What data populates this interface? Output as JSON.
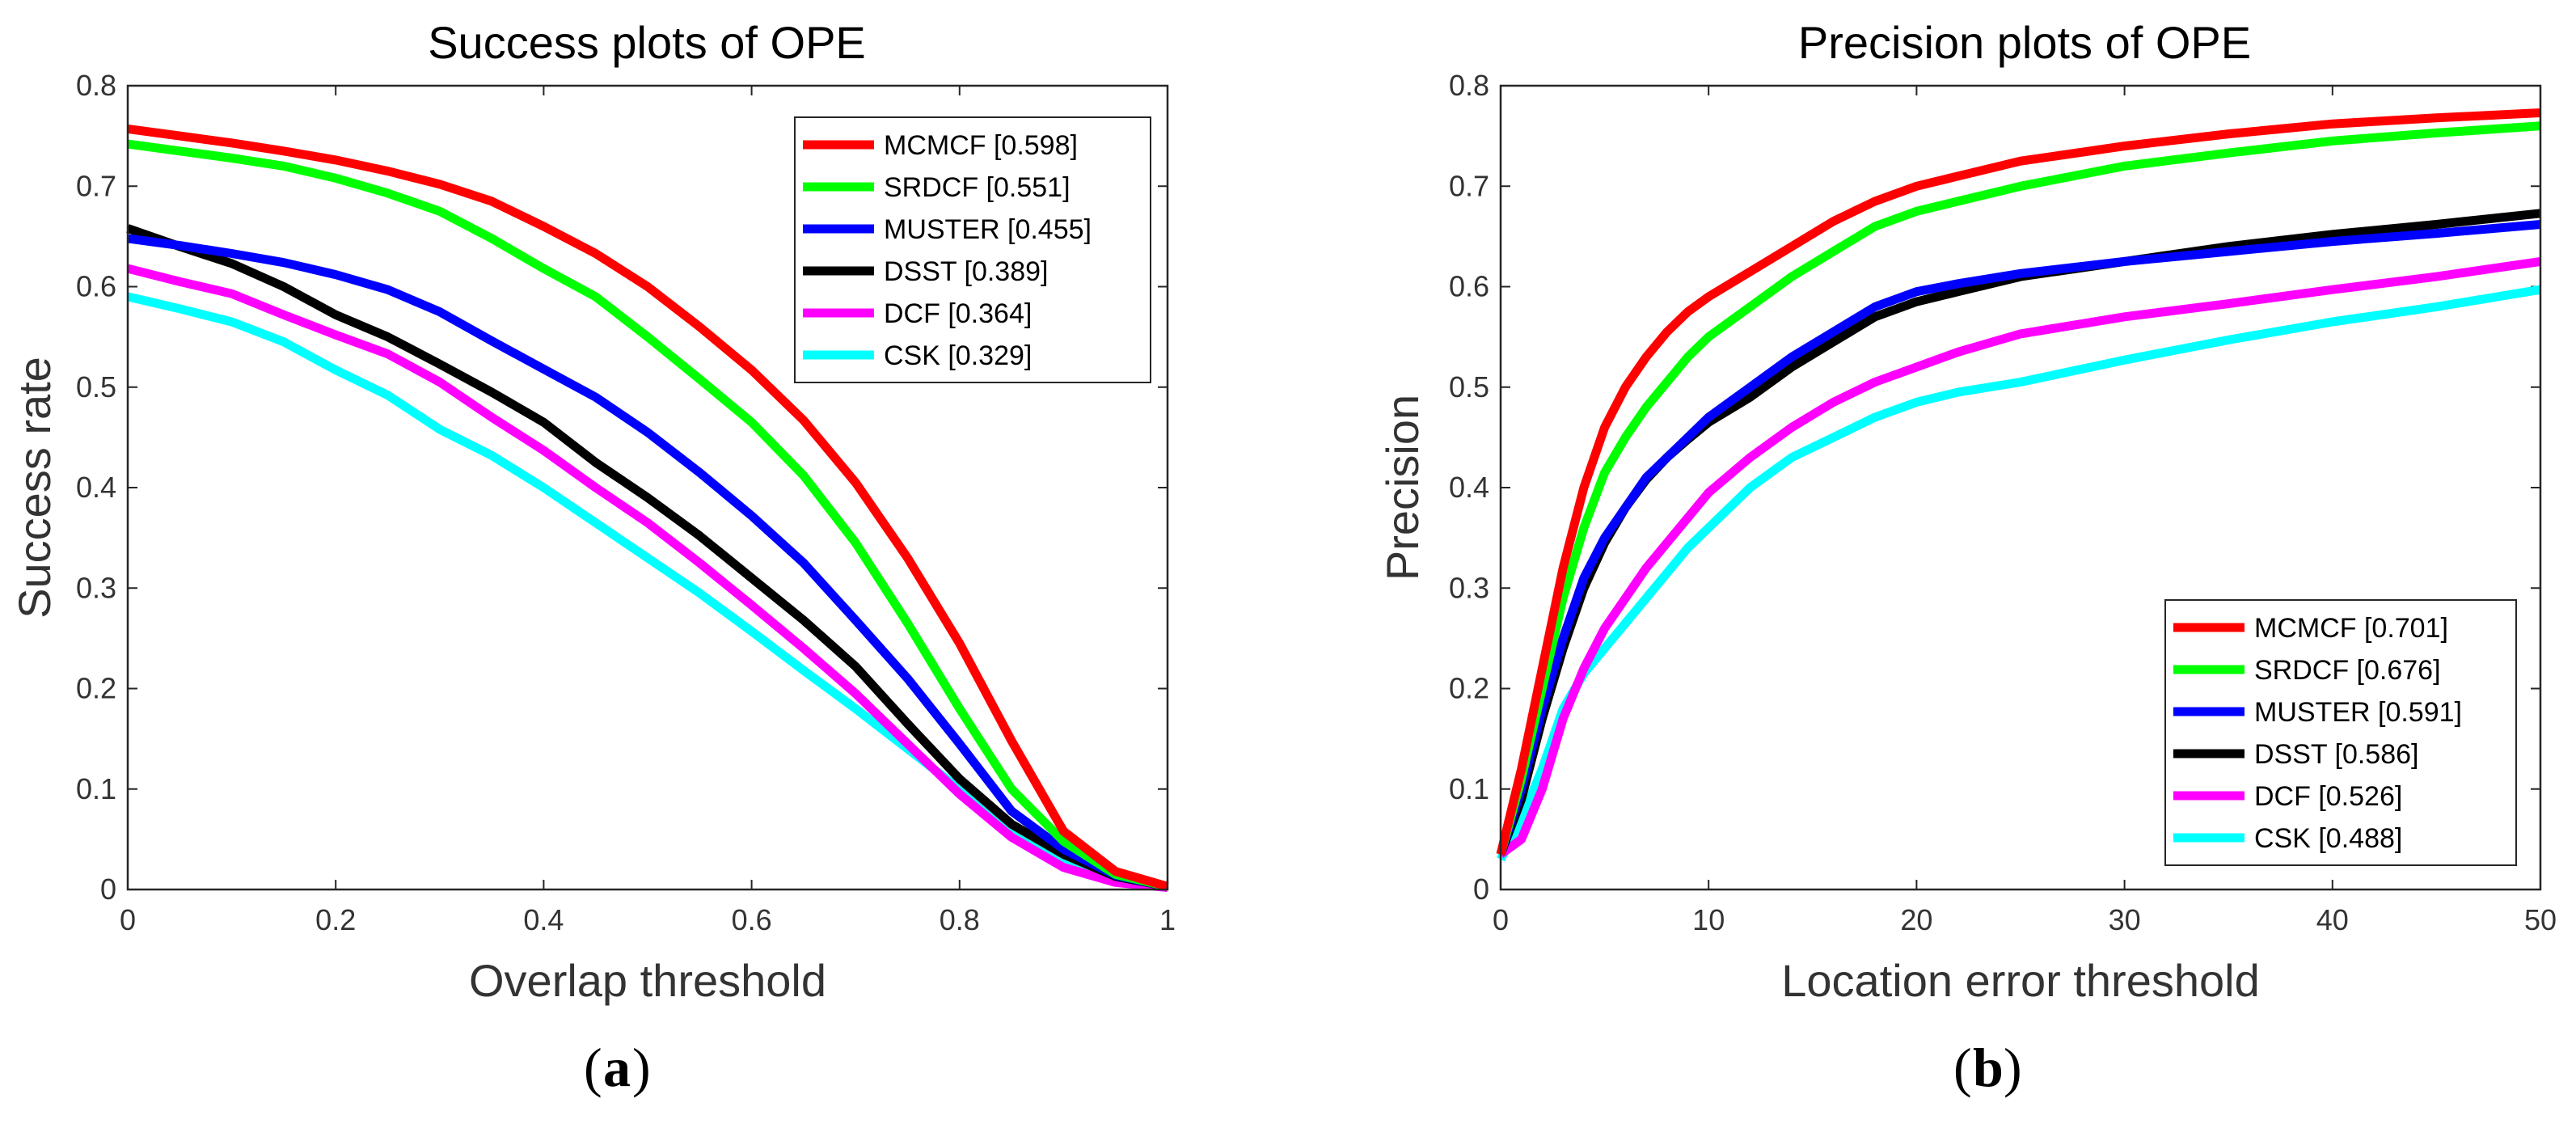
{
  "chart_data": [
    {
      "type": "line",
      "title": "Success plots of OPE",
      "xlabel": "Overlap threshold",
      "ylabel": "Success rate",
      "caption_letter": "a",
      "xlim": [
        0,
        1
      ],
      "ylim": [
        0,
        0.8
      ],
      "xticks": [
        "0",
        "0.2",
        "0.4",
        "0.6",
        "0.8",
        "1"
      ],
      "xtick_values": [
        0,
        0.2,
        0.4,
        0.6,
        0.8,
        1
      ],
      "yticks": [
        "0",
        "0.1",
        "0.2",
        "0.3",
        "0.4",
        "0.5",
        "0.6",
        "0.7",
        "0.8"
      ],
      "ytick_values": [
        0,
        0.1,
        0.2,
        0.3,
        0.4,
        0.5,
        0.6,
        0.7,
        0.8
      ],
      "legend_position": "top-right",
      "x": [
        0,
        0.05,
        0.1,
        0.15,
        0.2,
        0.25,
        0.3,
        0.35,
        0.4,
        0.45,
        0.5,
        0.55,
        0.6,
        0.65,
        0.7,
        0.75,
        0.8,
        0.85,
        0.9,
        0.95,
        1
      ],
      "series": [
        {
          "name": "MCMCF [0.598]",
          "color": "#ff0000",
          "values": [
            0.757,
            0.75,
            0.743,
            0.735,
            0.726,
            0.715,
            0.702,
            0.685,
            0.66,
            0.633,
            0.6,
            0.56,
            0.517,
            0.467,
            0.405,
            0.33,
            0.245,
            0.148,
            0.058,
            0.018,
            0.003
          ]
        },
        {
          "name": "SRDCF [0.551]",
          "color": "#00ff00",
          "values": [
            0.742,
            0.735,
            0.728,
            0.72,
            0.708,
            0.693,
            0.675,
            0.648,
            0.618,
            0.59,
            0.55,
            0.508,
            0.465,
            0.412,
            0.345,
            0.265,
            0.18,
            0.1,
            0.048,
            0.015,
            0.003
          ]
        },
        {
          "name": "MUSTER [0.455]",
          "color": "#0000ff",
          "values": [
            0.648,
            0.641,
            0.633,
            0.624,
            0.612,
            0.597,
            0.575,
            0.546,
            0.518,
            0.49,
            0.455,
            0.415,
            0.372,
            0.325,
            0.268,
            0.21,
            0.145,
            0.078,
            0.04,
            0.014,
            0.003
          ]
        },
        {
          "name": "DSST [0.389]",
          "color": "#000000",
          "values": [
            0.658,
            0.64,
            0.623,
            0.6,
            0.572,
            0.55,
            0.523,
            0.495,
            0.465,
            0.425,
            0.39,
            0.352,
            0.31,
            0.268,
            0.222,
            0.165,
            0.11,
            0.065,
            0.035,
            0.013,
            0.003
          ]
        },
        {
          "name": "DCF [0.364]",
          "color": "#ff00ff",
          "values": [
            0.618,
            0.605,
            0.593,
            0.572,
            0.552,
            0.533,
            0.505,
            0.47,
            0.437,
            0.4,
            0.365,
            0.325,
            0.283,
            0.24,
            0.195,
            0.145,
            0.095,
            0.052,
            0.022,
            0.007,
            0.002
          ]
        },
        {
          "name": "CSK [0.329]",
          "color": "#00ffff",
          "values": [
            0.59,
            0.578,
            0.565,
            0.545,
            0.517,
            0.492,
            0.458,
            0.432,
            0.4,
            0.365,
            0.33,
            0.295,
            0.257,
            0.218,
            0.18,
            0.14,
            0.1,
            0.06,
            0.03,
            0.01,
            0.002
          ]
        }
      ]
    },
    {
      "type": "line",
      "title": "Precision plots of OPE",
      "xlabel": "Location error threshold",
      "ylabel": "Precision",
      "caption_letter": "b",
      "xlim": [
        0,
        50
      ],
      "ylim": [
        0,
        0.8
      ],
      "xticks": [
        "0",
        "10",
        "20",
        "30",
        "40",
        "50"
      ],
      "xtick_values": [
        0,
        10,
        20,
        30,
        40,
        50
      ],
      "yticks": [
        "0",
        "0.1",
        "0.2",
        "0.3",
        "0.4",
        "0.5",
        "0.6",
        "0.7",
        "0.8"
      ],
      "ytick_values": [
        0,
        0.1,
        0.2,
        0.3,
        0.4,
        0.5,
        0.6,
        0.7,
        0.8
      ],
      "legend_position": "bottom-right",
      "x": [
        0,
        1,
        2,
        3,
        4,
        5,
        6,
        7,
        8,
        9,
        10,
        12,
        14,
        16,
        18,
        20,
        22,
        25,
        30,
        35,
        40,
        45,
        50
      ],
      "series": [
        {
          "name": "MCMCF [0.701]",
          "color": "#ff0000",
          "values": [
            0.035,
            0.12,
            0.22,
            0.32,
            0.4,
            0.46,
            0.5,
            0.53,
            0.555,
            0.575,
            0.59,
            0.615,
            0.64,
            0.665,
            0.685,
            0.7,
            0.71,
            0.725,
            0.74,
            0.752,
            0.762,
            0.768,
            0.773
          ]
        },
        {
          "name": "SRDCF [0.676]",
          "color": "#00ff00",
          "values": [
            0.035,
            0.11,
            0.2,
            0.29,
            0.36,
            0.415,
            0.45,
            0.48,
            0.505,
            0.53,
            0.55,
            0.58,
            0.61,
            0.635,
            0.66,
            0.675,
            0.685,
            0.7,
            0.72,
            0.733,
            0.745,
            0.753,
            0.76
          ]
        },
        {
          "name": "MUSTER [0.591]",
          "color": "#0000ff",
          "values": [
            0.035,
            0.1,
            0.18,
            0.25,
            0.31,
            0.35,
            0.38,
            0.41,
            0.43,
            0.45,
            0.47,
            0.5,
            0.53,
            0.555,
            0.58,
            0.595,
            0.603,
            0.613,
            0.625,
            0.635,
            0.645,
            0.653,
            0.662
          ]
        },
        {
          "name": "DSST [0.586]",
          "color": "#000000",
          "values": [
            0.035,
            0.09,
            0.17,
            0.24,
            0.3,
            0.345,
            0.38,
            0.408,
            0.43,
            0.448,
            0.465,
            0.49,
            0.52,
            0.545,
            0.57,
            0.585,
            0.595,
            0.61,
            0.625,
            0.64,
            0.652,
            0.662,
            0.673
          ]
        },
        {
          "name": "DCF [0.526]",
          "color": "#ff00ff",
          "values": [
            0.035,
            0.05,
            0.1,
            0.17,
            0.22,
            0.26,
            0.29,
            0.32,
            0.345,
            0.37,
            0.395,
            0.43,
            0.46,
            0.485,
            0.505,
            0.52,
            0.535,
            0.553,
            0.57,
            0.583,
            0.597,
            0.61,
            0.625
          ]
        },
        {
          "name": "CSK [0.488]",
          "color": "#00ffff",
          "values": [
            0.03,
            0.07,
            0.12,
            0.18,
            0.215,
            0.24,
            0.265,
            0.29,
            0.315,
            0.34,
            0.36,
            0.4,
            0.43,
            0.45,
            0.47,
            0.485,
            0.495,
            0.505,
            0.527,
            0.547,
            0.565,
            0.58,
            0.597
          ]
        }
      ]
    }
  ]
}
